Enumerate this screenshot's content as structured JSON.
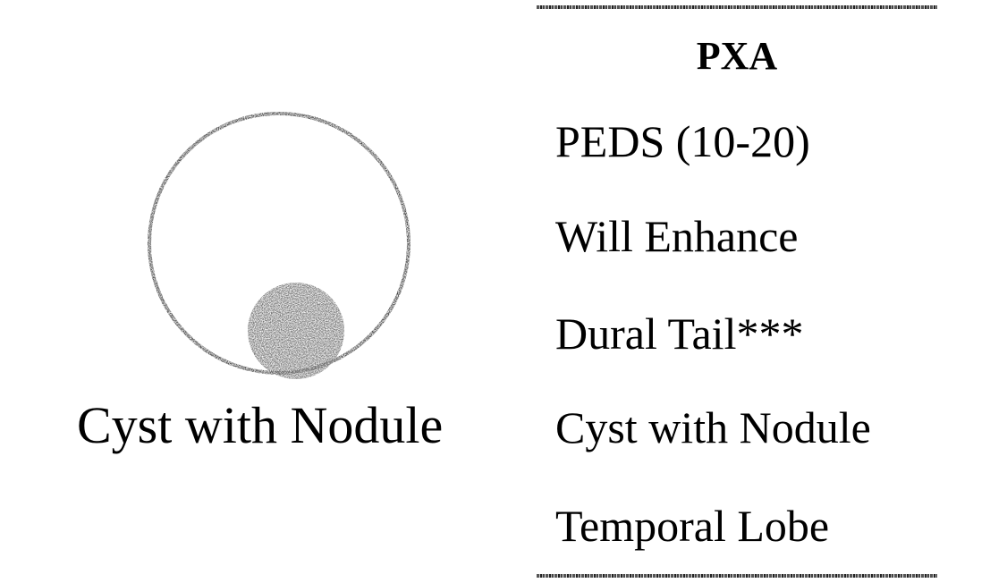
{
  "diagram": {
    "caption": "Cyst with Nodule",
    "stroke_color": "#3a3a3a",
    "nodule_color": "#6e6e6e"
  },
  "panel": {
    "title": "PXA",
    "items": [
      "PEDS (10-20)",
      "Will Enhance",
      "Dural Tail***",
      "Cyst with Nodule",
      "Temporal Lobe"
    ]
  }
}
